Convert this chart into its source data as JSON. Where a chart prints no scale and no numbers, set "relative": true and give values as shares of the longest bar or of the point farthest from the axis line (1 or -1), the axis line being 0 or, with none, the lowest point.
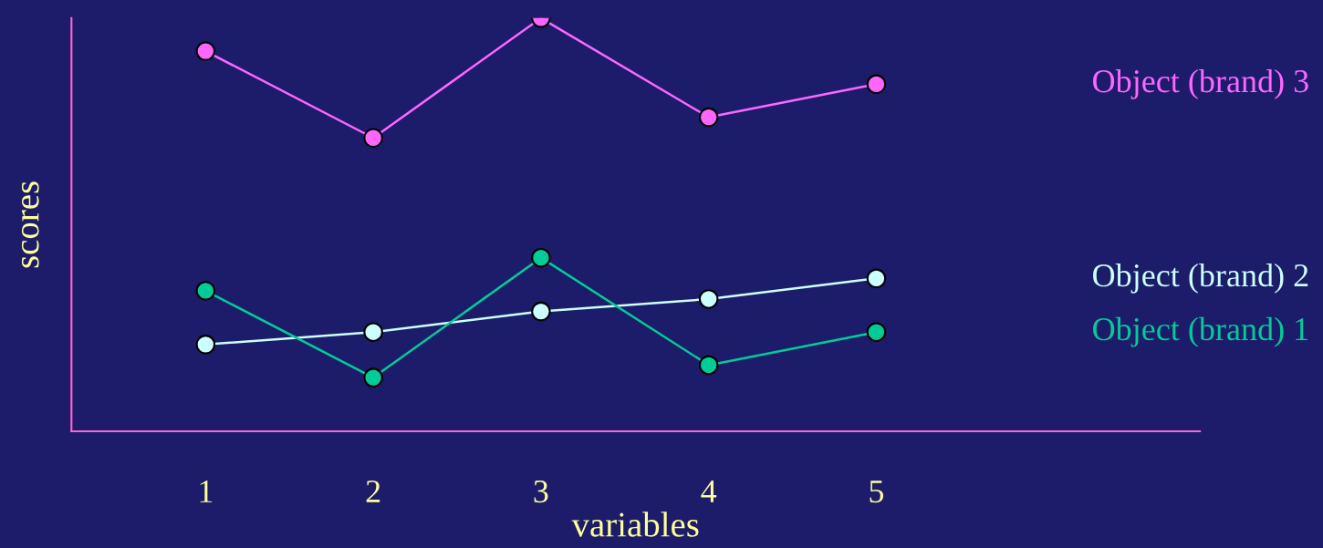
{
  "chart_data": {
    "type": "line",
    "relative": true,
    "xlabel": "variables",
    "ylabel": "scores",
    "categories": [
      "1",
      "2",
      "3",
      "4",
      "5"
    ],
    "series": [
      {
        "name": "Object (brand) 3",
        "color": "#ff66ff",
        "values": [
          0.92,
          0.71,
          1.0,
          0.76,
          0.84
        ]
      },
      {
        "name": "Object (brand) 2",
        "color": "#ccffff",
        "values": [
          0.21,
          0.24,
          0.29,
          0.32,
          0.37
        ]
      },
      {
        "name": "Object (brand) 1",
        "color": "#00cc99",
        "values": [
          0.34,
          0.13,
          0.42,
          0.16,
          0.24
        ]
      }
    ],
    "marker": "circle",
    "line_style": "solid",
    "grid": false,
    "legend": "right"
  }
}
